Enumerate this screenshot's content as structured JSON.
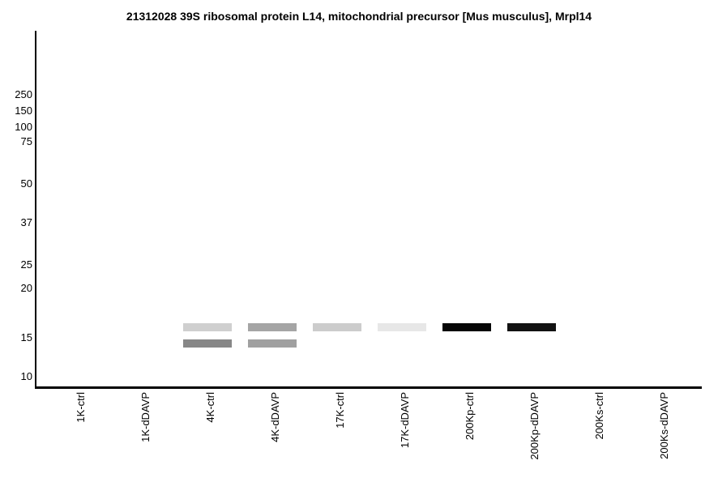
{
  "chart_data": {
    "type": "gel-blot",
    "title": "21312028 39S ribosomal protein L14, mitochondrial precursor [Mus musculus], Mrpl14",
    "mw_ticks_kda": [
      250,
      150,
      100,
      75,
      50,
      37,
      25,
      20,
      15,
      10
    ],
    "lanes": [
      "1K-ctrl",
      "1K-dDAVP",
      "4K-ctrl",
      "4K-dDAVP",
      "17K-ctrl",
      "17K-dDAVP",
      "200Kp-ctrl",
      "200Kp-dDAVP",
      "200Ks-ctrl",
      "200Ks-dDAVP"
    ],
    "bands": [
      {
        "lane": "4K-ctrl",
        "kda": 16,
        "color": "#cfcfcf"
      },
      {
        "lane": "4K-ctrl",
        "kda": 14.5,
        "color": "#878787"
      },
      {
        "lane": "4K-dDAVP",
        "kda": 16,
        "color": "#a5a5a5"
      },
      {
        "lane": "4K-dDAVP",
        "kda": 14.5,
        "color": "#a0a0a0"
      },
      {
        "lane": "17K-ctrl",
        "kda": 16,
        "color": "#cccccc"
      },
      {
        "lane": "17K-dDAVP",
        "kda": 16,
        "color": "#e7e7e7"
      },
      {
        "lane": "200Kp-ctrl",
        "kda": 16,
        "color": "#060606"
      },
      {
        "lane": "200Kp-dDAVP",
        "kda": 16,
        "color": "#121212"
      }
    ],
    "layout_hints": {
      "grid": false,
      "background": "#ffffff",
      "axis_color": "#000000",
      "y_scale": "molecular-weight-markers",
      "lane_labels_rotated_90": true
    }
  }
}
